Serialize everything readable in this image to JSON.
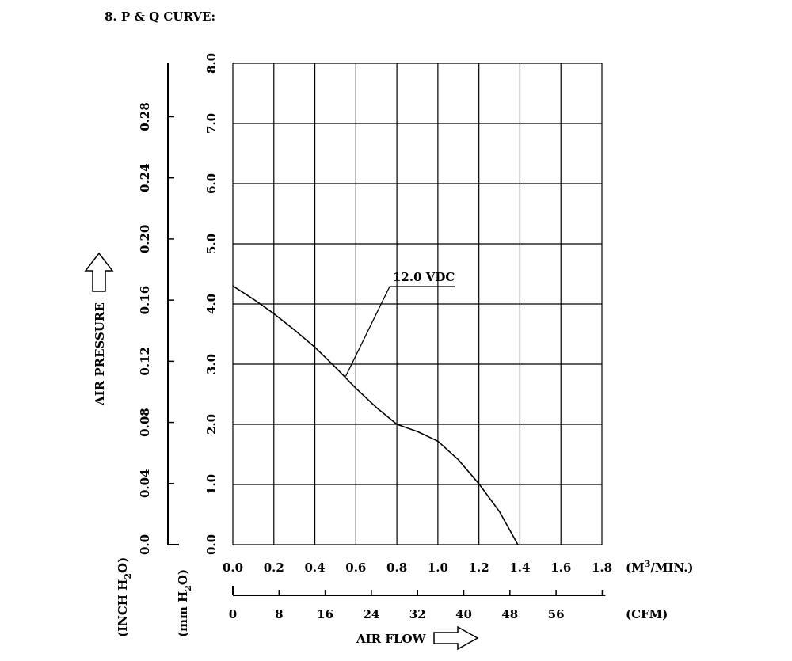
{
  "section_title": "8. P & Q CURVE:",
  "chart_data": {
    "type": "line",
    "title": "P & Q CURVE",
    "x_label": "AIR FLOW",
    "x_unit": "(M³/MIN.)",
    "x_unit_parts": {
      "base": "(M",
      "sup": "3",
      "tail": "/MIN.)"
    },
    "x_range": [
      0,
      1.8
    ],
    "x_ticks": [
      "0.0",
      "0.2",
      "0.4",
      "0.6",
      "0.8",
      "1.0",
      "1.2",
      "1.4",
      "1.6",
      "1.8"
    ],
    "x2_unit": "(CFM)",
    "x2_ticks": [
      "0",
      "8",
      "16",
      "24",
      "32",
      "40",
      "48",
      "56"
    ],
    "y_label": "AIR PRESSURE",
    "y_unit": "(mm H₂O)",
    "y_unit_parts": {
      "base": "(mm H",
      "sub": "2",
      "tail": "O)"
    },
    "y_range": [
      0,
      8
    ],
    "y_ticks": [
      "0.0",
      "1.0",
      "2.0",
      "3.0",
      "4.0",
      "5.0",
      "6.0",
      "7.0",
      "8.0"
    ],
    "y2_unit": "(INCH H₂O)",
    "y2_unit_parts": {
      "base": "(INCH H",
      "sub": "2",
      "tail": "O)"
    },
    "y2_ticks": [
      "0.0",
      "0.04",
      "0.08",
      "0.12",
      "0.16",
      "0.20",
      "0.24",
      "0.28"
    ],
    "grid": true,
    "series": [
      {
        "name": "12.0 VDC",
        "x": [
          0.0,
          0.1,
          0.2,
          0.3,
          0.4,
          0.5,
          0.6,
          0.7,
          0.8,
          0.9,
          1.0,
          1.1,
          1.2,
          1.3,
          1.39
        ],
        "y": [
          4.3,
          4.08,
          3.84,
          3.57,
          3.28,
          2.95,
          2.6,
          2.28,
          2.0,
          1.88,
          1.72,
          1.41,
          1.01,
          0.55,
          0.0
        ]
      }
    ],
    "annotations": [
      {
        "text": "12.0 VDC",
        "x": 0.55,
        "y": 2.9
      }
    ]
  }
}
